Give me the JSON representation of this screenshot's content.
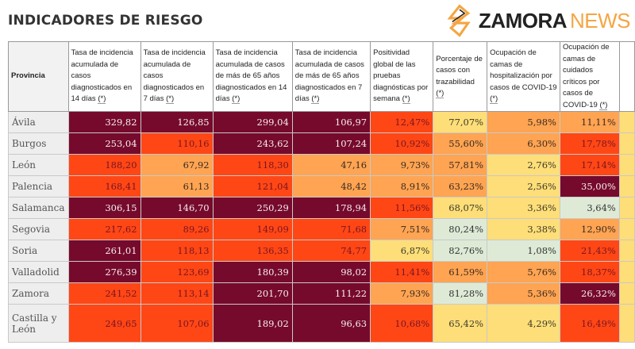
{
  "title": "INDICADORES DE RIESGO",
  "colors": {
    "D": "#760a2c",
    "R": "#ff4716",
    "O": "#fea452",
    "Y": "#fede78",
    "G": "#deead6"
  },
  "headers": [
    {
      "text": "Provincia",
      "note": ""
    },
    {
      "text": "Tasa de incidencia acumulada de casos diagnosticados en 14 días",
      "note": "(*)"
    },
    {
      "text": "Tasa de incidencia acumulada de casos diagnosticados en 7 días",
      "note": "(*)"
    },
    {
      "text": "Tasa de incidencia acumulada de casos de más de 65 años diagnosticados en 14 días",
      "note": "(*)"
    },
    {
      "text": "Tasa de incidencia acumulada de casos de más de 65 años diagnosticados en 7 días",
      "note": "(*)"
    },
    {
      "text": "Positividad global de las pruebas diagnósticas por semana",
      "note": "(*)"
    },
    {
      "text": "Porcentaje de casos con trazabilidad",
      "note": "(*)"
    },
    {
      "text": "Ocupación de camas de hospitalización por casos de COVID-19",
      "note": "(*)"
    },
    {
      "text": "Ocupación de camas de cuidados críticos por casos de COVID-19",
      "note": "(*)"
    },
    {
      "text": "",
      "note": ""
    }
  ],
  "rows": [
    {
      "provincia": "Ávila",
      "values": [
        "329,82",
        "126,85",
        "299,04",
        "106,97",
        "12,47%",
        "77,07%",
        "5,98%",
        "11,11%",
        ""
      ],
      "levels": [
        "D",
        "D",
        "D",
        "D",
        "R",
        "Y",
        "O",
        "O",
        "Y"
      ]
    },
    {
      "provincia": "Burgos",
      "values": [
        "253,04",
        "110,16",
        "243,62",
        "107,24",
        "10,92%",
        "55,60%",
        "6,30%",
        "17,78%",
        ""
      ],
      "levels": [
        "D",
        "R",
        "D",
        "D",
        "R",
        "O",
        "O",
        "R",
        "Y"
      ]
    },
    {
      "provincia": "León",
      "values": [
        "188,20",
        "67,92",
        "118,30",
        "47,16",
        "9,73%",
        "57,81%",
        "2,76%",
        "17,14%",
        ""
      ],
      "levels": [
        "R",
        "O",
        "R",
        "O",
        "O",
        "O",
        "Y",
        "R",
        "Y"
      ]
    },
    {
      "provincia": "Palencia",
      "values": [
        "168,41",
        "61,13",
        "121,04",
        "48,42",
        "8,91%",
        "63,23%",
        "2,56%",
        "35,00%",
        ""
      ],
      "levels": [
        "R",
        "O",
        "R",
        "O",
        "O",
        "O",
        "Y",
        "D",
        "Y"
      ]
    },
    {
      "provincia": "Salamanca",
      "values": [
        "306,15",
        "146,70",
        "250,29",
        "178,94",
        "11,56%",
        "68,07%",
        "3,36%",
        "3,64%",
        ""
      ],
      "levels": [
        "D",
        "D",
        "D",
        "D",
        "R",
        "Y",
        "Y",
        "G",
        "Y"
      ]
    },
    {
      "provincia": "Segovia",
      "values": [
        "217,62",
        "89,26",
        "149,09",
        "71,68",
        "7,51%",
        "80,24%",
        "3,38%",
        "12,90%",
        ""
      ],
      "levels": [
        "R",
        "R",
        "R",
        "R",
        "O",
        "G",
        "Y",
        "O",
        "Y"
      ]
    },
    {
      "provincia": "Soria",
      "values": [
        "261,01",
        "118,13",
        "136,35",
        "74,77",
        "6,87%",
        "82,76%",
        "1,08%",
        "21,43%",
        ""
      ],
      "levels": [
        "D",
        "R",
        "R",
        "R",
        "Y",
        "G",
        "G",
        "R",
        "Y"
      ]
    },
    {
      "provincia": "Valladolid",
      "values": [
        "276,39",
        "123,69",
        "180,39",
        "98,02",
        "11,41%",
        "61,59%",
        "5,76%",
        "18,37%",
        ""
      ],
      "levels": [
        "D",
        "R",
        "D",
        "D",
        "R",
        "O",
        "O",
        "R",
        "Y"
      ]
    },
    {
      "provincia": "Zamora",
      "values": [
        "241,52",
        "113,14",
        "201,70",
        "111,22",
        "7,93%",
        "81,28%",
        "5,36%",
        "26,32%",
        ""
      ],
      "levels": [
        "R",
        "R",
        "D",
        "D",
        "O",
        "G",
        "O",
        "D",
        "Y"
      ]
    },
    {
      "provincia": "Castilla y León",
      "values": [
        "249,65",
        "107,06",
        "189,02",
        "96,63",
        "10,68%",
        "65,42%",
        "4,29%",
        "16,49%",
        ""
      ],
      "levels": [
        "R",
        "R",
        "D",
        "D",
        "R",
        "Y",
        "Y",
        "R",
        "Y"
      ]
    }
  ],
  "watermark": {
    "brand1": "ZAMORA",
    "brand2": "NEWS"
  }
}
